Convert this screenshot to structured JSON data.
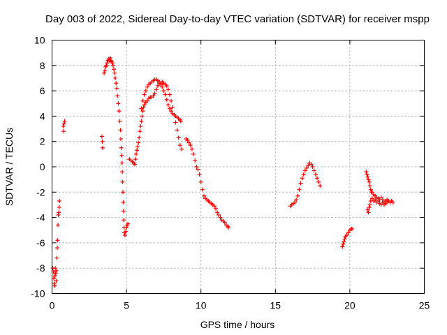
{
  "chart_data": {
    "type": "scatter",
    "title": "Day 003 of 2022, Sidereal Day-to-day VTEC variation (SDTVAR) for receiver mspp",
    "xlabel": "GPS time / hours",
    "ylabel": "SDTVAR / TECUs",
    "xlim": [
      0,
      25
    ],
    "ylim": [
      -10,
      10
    ],
    "xticks": [
      0,
      5,
      10,
      15,
      20,
      25
    ],
    "yticks": [
      -10,
      -8,
      -6,
      -4,
      -2,
      0,
      2,
      4,
      6,
      8,
      10
    ],
    "xtick_labels": [
      "0",
      "5",
      "10",
      "15",
      "20",
      "25"
    ],
    "ytick_labels": [
      "-10",
      "-8",
      "-6",
      "-4",
      "-2",
      "0",
      "2",
      "4",
      "6",
      "8",
      "10"
    ],
    "grid": true,
    "marker": "+",
    "color": "#ff0000",
    "series": [
      {
        "name": "SDTVAR",
        "points": [
          [
            0.05,
            -8.0
          ],
          [
            0.1,
            -8.3
          ],
          [
            0.12,
            -8.8
          ],
          [
            0.15,
            -9.2
          ],
          [
            0.18,
            -9.4
          ],
          [
            0.2,
            -8.6
          ],
          [
            0.22,
            -8.0
          ],
          [
            0.25,
            -8.4
          ],
          [
            0.28,
            -9.0
          ],
          [
            0.3,
            -8.2
          ],
          [
            0.32,
            -7.2
          ],
          [
            0.35,
            -6.4
          ],
          [
            0.37,
            -5.8
          ],
          [
            0.4,
            -4.6
          ],
          [
            0.42,
            -3.8
          ],
          [
            0.45,
            -3.6
          ],
          [
            0.48,
            -3.2
          ],
          [
            0.5,
            -2.7
          ],
          [
            0.75,
            3.2
          ],
          [
            0.78,
            2.8
          ],
          [
            0.8,
            3.4
          ],
          [
            0.85,
            3.6
          ],
          [
            3.35,
            2.4
          ],
          [
            3.38,
            2.0
          ],
          [
            3.4,
            1.5
          ],
          [
            3.5,
            7.4
          ],
          [
            3.55,
            7.6
          ],
          [
            3.6,
            7.9
          ],
          [
            3.65,
            8.0
          ],
          [
            3.7,
            8.2
          ],
          [
            3.75,
            8.4
          ],
          [
            3.8,
            8.5
          ],
          [
            3.85,
            8.4
          ],
          [
            3.9,
            8.6
          ],
          [
            3.95,
            8.4
          ],
          [
            4.0,
            8.3
          ],
          [
            4.05,
            8.2
          ],
          [
            4.1,
            8.0
          ],
          [
            4.15,
            7.7
          ],
          [
            4.2,
            7.4
          ],
          [
            4.25,
            7.0
          ],
          [
            4.3,
            6.6
          ],
          [
            4.35,
            6.2
          ],
          [
            4.4,
            5.6
          ],
          [
            4.45,
            5.0
          ],
          [
            4.5,
            4.4
          ],
          [
            4.55,
            3.6
          ],
          [
            4.6,
            2.9
          ],
          [
            4.62,
            2.2
          ],
          [
            4.65,
            1.5
          ],
          [
            4.68,
            0.9
          ],
          [
            4.7,
            0.3
          ],
          [
            4.72,
            -0.4
          ],
          [
            4.74,
            -1.2
          ],
          [
            4.76,
            -2.0
          ],
          [
            4.78,
            -2.8
          ],
          [
            4.8,
            -3.5
          ],
          [
            4.82,
            -4.2
          ],
          [
            4.84,
            -4.8
          ],
          [
            4.86,
            -5.2
          ],
          [
            4.9,
            -5.4
          ],
          [
            4.95,
            -5.1
          ],
          [
            5.0,
            -4.8
          ],
          [
            5.05,
            -4.6
          ],
          [
            5.1,
            -4.5
          ],
          [
            5.2,
            0.6
          ],
          [
            5.3,
            0.5
          ],
          [
            5.4,
            0.4
          ],
          [
            5.5,
            0.3
          ],
          [
            5.55,
            0.2
          ],
          [
            5.6,
            0.6
          ],
          [
            5.65,
            1.0
          ],
          [
            5.7,
            1.3
          ],
          [
            5.75,
            1.6
          ],
          [
            5.8,
            1.9
          ],
          [
            5.85,
            2.3
          ],
          [
            5.9,
            2.8
          ],
          [
            5.95,
            3.2
          ],
          [
            6.0,
            3.6
          ],
          [
            6.05,
            4.0
          ],
          [
            6.1,
            4.4
          ],
          [
            6.15,
            4.7
          ],
          [
            6.2,
            4.9
          ],
          [
            6.3,
            5.1
          ],
          [
            6.4,
            5.2
          ],
          [
            6.5,
            5.4
          ],
          [
            6.6,
            5.5
          ],
          [
            6.7,
            5.5
          ],
          [
            6.8,
            5.6
          ],
          [
            6.9,
            5.8
          ],
          [
            7.0,
            6.1
          ],
          [
            7.1,
            6.4
          ],
          [
            7.2,
            6.6
          ],
          [
            7.3,
            6.5
          ],
          [
            7.4,
            6.3
          ],
          [
            7.5,
            6.0
          ],
          [
            7.6,
            5.7
          ],
          [
            7.7,
            5.3
          ],
          [
            7.8,
            4.9
          ],
          [
            7.9,
            4.6
          ],
          [
            8.0,
            4.4
          ],
          [
            8.1,
            4.2
          ],
          [
            8.2,
            4.1
          ],
          [
            8.3,
            4.0
          ],
          [
            8.4,
            3.9
          ],
          [
            8.5,
            3.8
          ],
          [
            8.6,
            3.7
          ],
          [
            8.65,
            3.6
          ],
          [
            6.0,
            4.6
          ],
          [
            6.1,
            5.2
          ],
          [
            6.2,
            5.7
          ],
          [
            6.3,
            6.0
          ],
          [
            6.4,
            6.3
          ],
          [
            6.5,
            6.5
          ],
          [
            6.6,
            6.6
          ],
          [
            6.7,
            6.7
          ],
          [
            6.8,
            6.8
          ],
          [
            6.9,
            6.9
          ],
          [
            7.0,
            6.9
          ],
          [
            7.1,
            6.8
          ],
          [
            7.2,
            6.7
          ],
          [
            7.3,
            6.6
          ],
          [
            7.4,
            6.7
          ],
          [
            7.5,
            6.6
          ],
          [
            7.6,
            6.5
          ],
          [
            7.7,
            6.4
          ],
          [
            7.8,
            6.1
          ],
          [
            7.9,
            5.7
          ],
          [
            8.0,
            5.2
          ],
          [
            8.1,
            4.7
          ],
          [
            8.2,
            4.1
          ],
          [
            8.3,
            3.5
          ],
          [
            8.4,
            2.9
          ],
          [
            8.5,
            2.3
          ],
          [
            8.6,
            1.7
          ],
          [
            8.7,
            1.4
          ],
          [
            9.0,
            2.2
          ],
          [
            9.1,
            2.1
          ],
          [
            9.2,
            1.9
          ],
          [
            9.3,
            1.7
          ],
          [
            9.4,
            1.4
          ],
          [
            9.5,
            1.0
          ],
          [
            9.6,
            0.5
          ],
          [
            9.7,
            0.0
          ],
          [
            9.8,
            -0.2
          ],
          [
            9.9,
            -0.6
          ],
          [
            10.0,
            -1.2
          ],
          [
            10.1,
            -1.8
          ],
          [
            10.2,
            -2.3
          ],
          [
            10.3,
            -2.5
          ],
          [
            10.4,
            -2.6
          ],
          [
            10.5,
            -2.7
          ],
          [
            10.6,
            -2.8
          ],
          [
            10.7,
            -2.9
          ],
          [
            10.8,
            -3.0
          ],
          [
            10.9,
            -3.1
          ],
          [
            11.0,
            -3.3
          ],
          [
            11.1,
            -3.6
          ],
          [
            11.2,
            -3.8
          ],
          [
            11.3,
            -4.0
          ],
          [
            11.4,
            -4.2
          ],
          [
            11.5,
            -4.3
          ],
          [
            11.6,
            -4.4
          ],
          [
            11.7,
            -4.6
          ],
          [
            11.8,
            -4.7
          ],
          [
            11.85,
            -4.8
          ],
          [
            16.0,
            -3.1
          ],
          [
            16.1,
            -3.0
          ],
          [
            16.2,
            -2.9
          ],
          [
            16.3,
            -2.8
          ],
          [
            16.4,
            -2.6
          ],
          [
            16.5,
            -2.3
          ],
          [
            16.6,
            -1.8
          ],
          [
            16.7,
            -1.3
          ],
          [
            16.8,
            -0.9
          ],
          [
            16.9,
            -0.6
          ],
          [
            17.0,
            -0.3
          ],
          [
            17.1,
            -0.1
          ],
          [
            17.2,
            0.1
          ],
          [
            17.3,
            0.3
          ],
          [
            17.4,
            0.2
          ],
          [
            17.5,
            0.0
          ],
          [
            17.6,
            -0.3
          ],
          [
            17.7,
            -0.6
          ],
          [
            17.8,
            -0.9
          ],
          [
            17.9,
            -1.2
          ],
          [
            18.0,
            -1.5
          ],
          [
            19.5,
            -6.3
          ],
          [
            19.55,
            -6.1
          ],
          [
            19.6,
            -5.9
          ],
          [
            19.65,
            -5.7
          ],
          [
            19.7,
            -5.5
          ],
          [
            19.8,
            -5.4
          ],
          [
            19.9,
            -5.2
          ],
          [
            20.0,
            -5.0
          ],
          [
            20.1,
            -4.9
          ],
          [
            20.15,
            -4.9
          ],
          [
            21.1,
            -0.4
          ],
          [
            21.15,
            -0.6
          ],
          [
            21.2,
            -0.8
          ],
          [
            21.25,
            -1.0
          ],
          [
            21.3,
            -1.2
          ],
          [
            21.35,
            -1.5
          ],
          [
            21.4,
            -1.8
          ],
          [
            21.45,
            -2.0
          ],
          [
            21.5,
            -2.0
          ],
          [
            21.6,
            -2.2
          ],
          [
            21.7,
            -2.3
          ],
          [
            21.8,
            -2.4
          ],
          [
            21.9,
            -2.5
          ],
          [
            22.0,
            -2.6
          ],
          [
            22.1,
            -2.4
          ],
          [
            22.2,
            -2.6
          ],
          [
            22.3,
            -2.8
          ],
          [
            22.4,
            -2.9
          ],
          [
            22.5,
            -2.8
          ],
          [
            22.6,
            -2.7
          ],
          [
            22.7,
            -2.8
          ],
          [
            22.8,
            -2.7
          ],
          [
            22.9,
            -2.8
          ],
          [
            21.2,
            -3.4
          ],
          [
            21.25,
            -3.6
          ],
          [
            21.3,
            -3.2
          ],
          [
            21.35,
            -3.0
          ],
          [
            21.4,
            -2.7
          ],
          [
            21.5,
            -2.5
          ],
          [
            21.6,
            -2.7
          ],
          [
            21.7,
            -2.6
          ],
          [
            21.8,
            -2.8
          ],
          [
            21.9,
            -2.7
          ],
          [
            22.0,
            -2.9
          ],
          [
            22.1,
            -3.0
          ],
          [
            22.2,
            -2.8
          ],
          [
            22.3,
            -3.0
          ],
          [
            22.4,
            -2.7
          ],
          [
            22.5,
            -2.6
          ]
        ]
      }
    ]
  }
}
